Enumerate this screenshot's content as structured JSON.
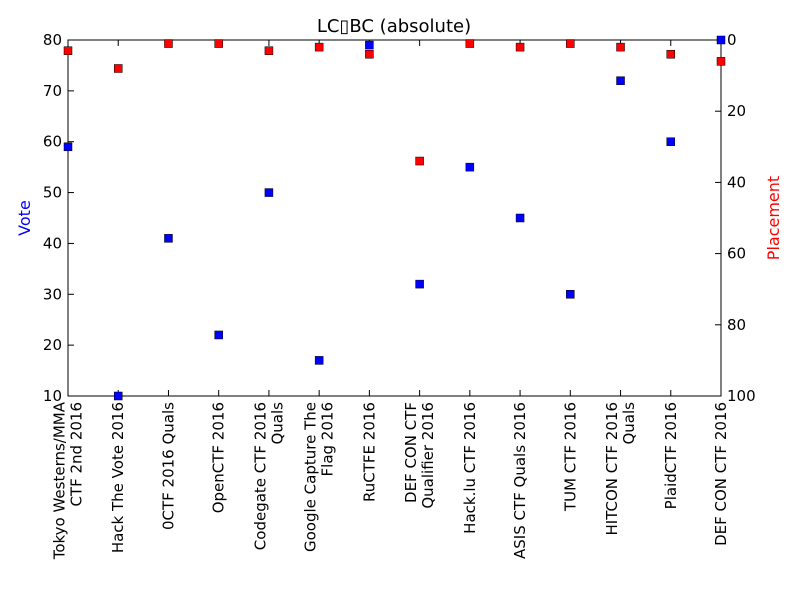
{
  "chart_data": {
    "type": "scatter",
    "title": "LC▯BC (absolute)",
    "xlabel": "",
    "categories": [
      "Tokyo Westerns/MMA CTF 2nd 2016",
      "Hack The Vote 2016",
      "0CTF 2016 Quals",
      "OpenCTF 2016",
      "Codegate CTF 2016 Quals",
      "Google Capture The Flag 2016",
      "RuCTFE 2016",
      "DEF CON CTF Qualifier 2016",
      "Hack.lu CTF 2016",
      "ASIS CTF Quals 2016",
      "TUM CTF 2016",
      "HITCON CTF 2016 Quals",
      "PlaidCTF 2016",
      "DEF CON CTF 2016"
    ],
    "category_label_lines": [
      [
        "Tokyo Westerns/MMA",
        "CTF 2nd 2016"
      ],
      [
        "Hack The Vote 2016"
      ],
      [
        "0CTF 2016 Quals"
      ],
      [
        "OpenCTF 2016"
      ],
      [
        "Codegate CTF 2016",
        "Quals"
      ],
      [
        "Google Capture The",
        "Flag 2016"
      ],
      [
        "RuCTFE 2016"
      ],
      [
        "DEF CON CTF",
        "Qualifier 2016"
      ],
      [
        "Hack.lu CTF 2016"
      ],
      [
        "ASIS CTF Quals 2016"
      ],
      [
        "TUM CTF 2016"
      ],
      [
        "HITCON CTF 2016",
        "Quals"
      ],
      [
        "PlaidCTF 2016"
      ],
      [
        "DEF CON CTF 2016"
      ]
    ],
    "series": [
      {
        "name": "Vote",
        "axis": "left",
        "color": "#0000ff",
        "marker": "square",
        "values": [
          59,
          10,
          41,
          22,
          50,
          17,
          79,
          32,
          55,
          45,
          30,
          72,
          60,
          80
        ]
      },
      {
        "name": "Placement",
        "axis": "right",
        "color": "#ff0000",
        "marker": "square",
        "values": [
          3,
          8,
          1,
          1,
          3,
          2,
          4,
          34,
          1,
          2,
          1,
          2,
          4,
          6
        ]
      }
    ],
    "y_left": {
      "label": "Vote",
      "color": "#0000ff",
      "range": [
        10,
        80
      ],
      "ticks": [
        10,
        20,
        30,
        40,
        50,
        60,
        70,
        80
      ]
    },
    "y_right": {
      "label": "Placement",
      "color": "#ff0000",
      "range": [
        0,
        100
      ],
      "inverted": true,
      "ticks": [
        0,
        20,
        40,
        60,
        80,
        100
      ]
    },
    "grid": false,
    "legend": "none"
  }
}
